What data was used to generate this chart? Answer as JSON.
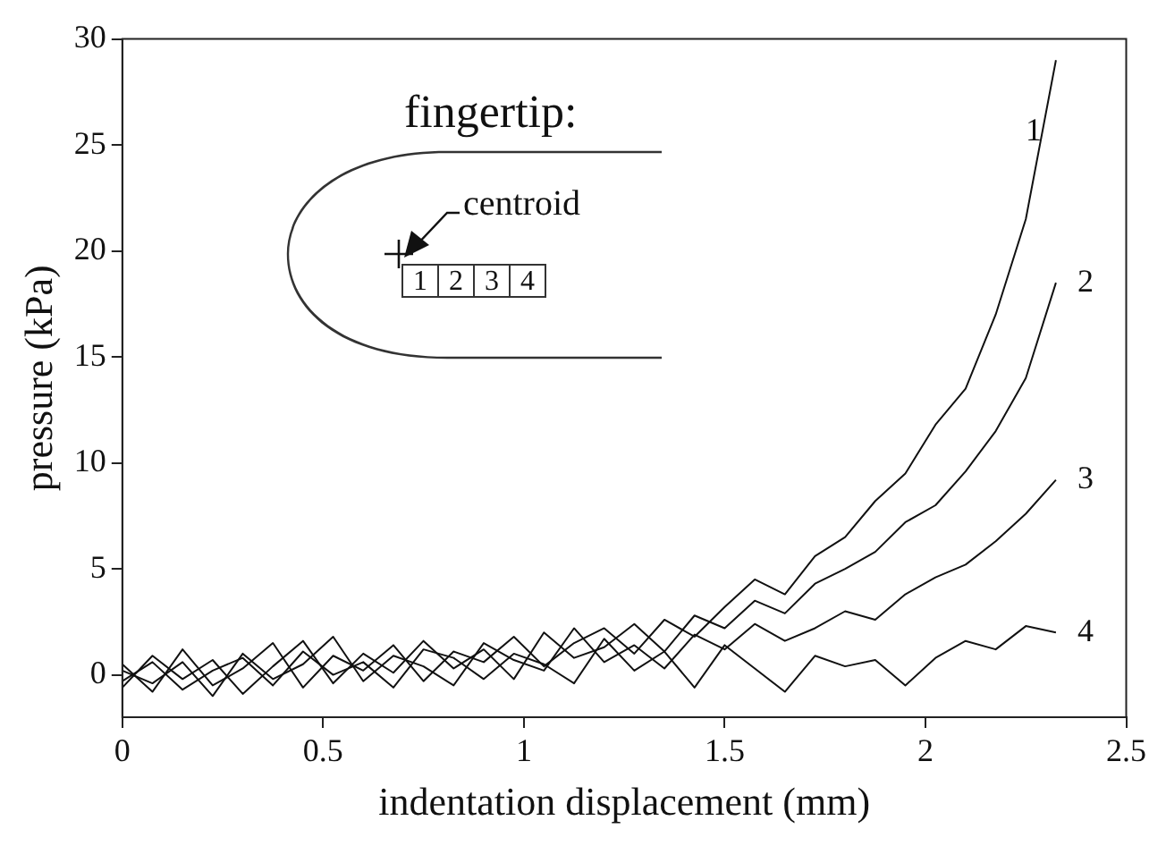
{
  "chart_data": {
    "type": "line",
    "xlabel": "indentation displacement (mm)",
    "ylabel": "pressure (kPa)",
    "x": [
      0,
      0.075,
      0.15,
      0.225,
      0.3,
      0.375,
      0.45,
      0.525,
      0.6,
      0.675,
      0.75,
      0.825,
      0.9,
      0.975,
      1.05,
      1.125,
      1.2,
      1.275,
      1.35,
      1.425,
      1.5,
      1.575,
      1.65,
      1.725,
      1.8,
      1.875,
      1.95,
      2.025,
      2.1,
      2.175,
      2.25,
      2.325
    ],
    "series": [
      {
        "name": "1",
        "color": "#111111",
        "values": [
          0.5,
          -0.8,
          1.2,
          -0.5,
          0.3,
          1.5,
          -0.6,
          0.9,
          0.2,
          1.4,
          -0.3,
          1.1,
          0.6,
          1.8,
          0.4,
          1.5,
          2.2,
          1.0,
          2.6,
          1.8,
          3.2,
          4.5,
          3.8,
          5.6,
          6.5,
          8.2,
          9.5,
          11.8,
          13.5,
          17.0,
          21.5,
          29.0
        ]
      },
      {
        "name": "2",
        "color": "#111111",
        "values": [
          -0.6,
          0.9,
          -0.2,
          0.7,
          -0.9,
          0.4,
          1.6,
          -0.4,
          1.0,
          0.1,
          1.6,
          0.3,
          1.2,
          -0.2,
          2.0,
          0.8,
          1.3,
          2.4,
          1.1,
          2.8,
          2.2,
          3.5,
          2.9,
          4.3,
          5.0,
          5.8,
          7.2,
          8.0,
          9.6,
          11.5,
          14.0,
          18.5
        ]
      },
      {
        "name": "3",
        "color": "#111111",
        "values": [
          0.2,
          -0.4,
          0.6,
          -1.0,
          1.0,
          -0.2,
          0.5,
          1.8,
          -0.3,
          0.9,
          0.4,
          -0.5,
          1.5,
          0.7,
          0.2,
          2.2,
          0.6,
          1.4,
          0.3,
          1.9,
          1.2,
          2.4,
          1.6,
          2.2,
          3.0,
          2.6,
          3.8,
          4.6,
          5.2,
          6.3,
          7.6,
          9.2
        ]
      },
      {
        "name": "4",
        "color": "#111111",
        "values": [
          -0.3,
          0.6,
          -0.7,
          0.2,
          0.8,
          -0.5,
          1.1,
          0.0,
          0.6,
          -0.6,
          1.2,
          0.8,
          -0.2,
          1.0,
          0.5,
          -0.4,
          1.7,
          0.2,
          1.1,
          -0.6,
          1.4,
          0.3,
          -0.8,
          0.9,
          0.4,
          0.7,
          -0.5,
          0.8,
          1.6,
          1.2,
          2.3,
          2.0
        ]
      }
    ],
    "xlim": [
      0,
      2.5
    ],
    "xticks": [
      0,
      0.5,
      1,
      1.5,
      2,
      2.5
    ],
    "ylim": [
      -2,
      30
    ],
    "yticks": [
      0,
      5,
      10,
      15,
      20,
      25,
      30
    ],
    "annotations": [
      "fingertip:",
      "centroid",
      "1",
      "2",
      "3",
      "4"
    ],
    "grid": false,
    "legend": false,
    "marker": "none",
    "line_style": "solid"
  }
}
